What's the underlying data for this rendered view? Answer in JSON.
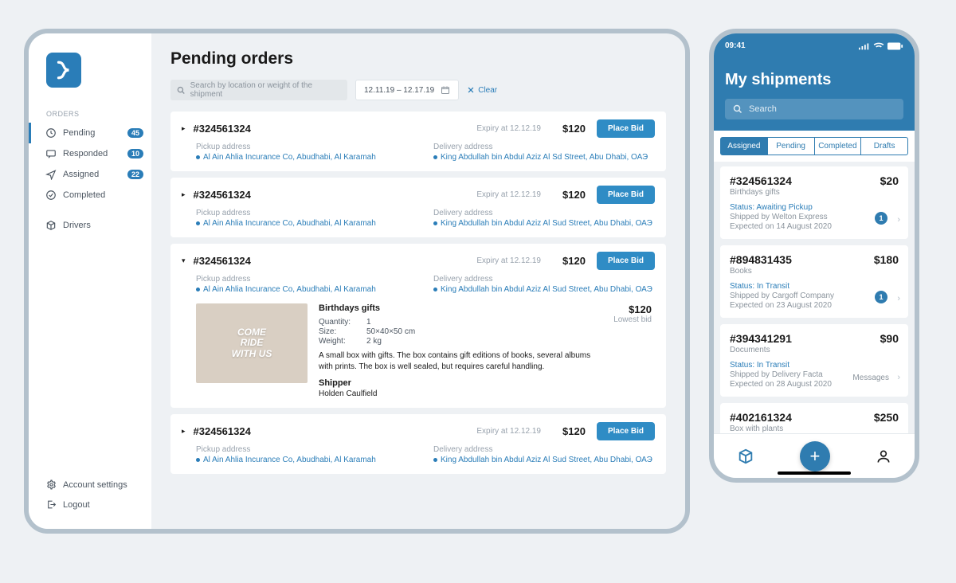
{
  "tablet": {
    "page_title": "Pending orders",
    "search_placeholder": "Search by location or weight of the shipment",
    "date_range": "12.11.19 – 12.17.19",
    "clear_label": "Clear",
    "sidebar": {
      "section_label": "ORDERS",
      "items": {
        "pending": {
          "label": "Pending",
          "badge": "45"
        },
        "responded": {
          "label": "Responded",
          "badge": "10"
        },
        "assigned": {
          "label": "Assigned",
          "badge": "22"
        },
        "completed": {
          "label": "Completed"
        },
        "drivers": {
          "label": "Drivers"
        }
      },
      "footer": {
        "settings": "Account settings",
        "logout": "Logout"
      }
    },
    "labels": {
      "pickup": "Pickup address",
      "delivery": "Delivery address",
      "place_bid": "Place Bid",
      "lowest": "Lowest bid",
      "shipper": "Shipper"
    },
    "orders": [
      {
        "id": "#324561324",
        "expiry": "Expiry at 12.12.19",
        "price": "$120",
        "pickup": "Al Ain Ahlia Incurance Co, Abudhabi, Al Karamah",
        "delivery": "King Abdullah bin Abdul Aziz Al Sd Street, Abu Dhabi, ОАЭ"
      },
      {
        "id": "#324561324",
        "expiry": "Expiry at 12.12.19",
        "price": "$120",
        "pickup": "Al Ain Ahlia Incurance Co, Abudhabi, Al Karamah",
        "delivery": "King Abdullah bin Abdul Aziz Al Sud Street, Abu Dhabi, ОАЭ"
      },
      {
        "id": "#324561324",
        "expiry": "Expiry at 12.12.19",
        "price": "$120",
        "pickup": "Al Ain Ahlia Incurance Co, Abudhabi, Al Karamah",
        "delivery": "King Abdullah bin Abdul Aziz Al Sud Street, Abu Dhabi, ОАЭ",
        "expanded": {
          "title": "Birthdays gifts",
          "qty_label": "Quantity:",
          "qty": "1",
          "size_label": "Size:",
          "size": "50×40×50 cm",
          "weight_label": "Weight:",
          "weight": "2 kg",
          "description": "A small box with gifts. The box contains gift editions of books, several albums with prints. The box is well sealed, but requires careful handling.",
          "shipper": "Holden Caulfield",
          "lowest_price": "$120"
        }
      },
      {
        "id": "#324561324",
        "expiry": "Expiry at 12.12.19",
        "price": "$120",
        "pickup": "Al Ain Ahlia Incurance Co, Abudhabi, Al Karamah",
        "delivery": "King Abdullah bin Abdul Aziz Al Sud Street, Abu Dhabi, ОАЭ"
      }
    ]
  },
  "phone": {
    "time": "09:41",
    "title": "My shipments",
    "search_placeholder": "Search",
    "tabs": {
      "assigned": "Assigned",
      "pending": "Pending",
      "completed": "Completed",
      "drafts": "Drafts"
    },
    "shipments": [
      {
        "id": "#324561324",
        "price": "$20",
        "subtitle": "Birthdays gifts",
        "status": "Status: Awaiting Pickup",
        "line1": "Shipped by Welton Express",
        "line2": "Expected on 14 August 2020",
        "count": "1"
      },
      {
        "id": "#894831435",
        "price": "$180",
        "subtitle": "Books",
        "status": "Status: In Transit",
        "line1": "Shipped by Cargoff Company",
        "line2": "Expected on 23 August 2020",
        "count": "1"
      },
      {
        "id": "#394341291",
        "price": "$90",
        "subtitle": "Documents",
        "status": "Status: In Transit",
        "line1": "Shipped by Delivery Facta",
        "line2": "Expected on 28 August 2020",
        "messages": "Messages"
      },
      {
        "id": "#402161324",
        "price": "$250",
        "subtitle": "Box with plants"
      }
    ]
  }
}
